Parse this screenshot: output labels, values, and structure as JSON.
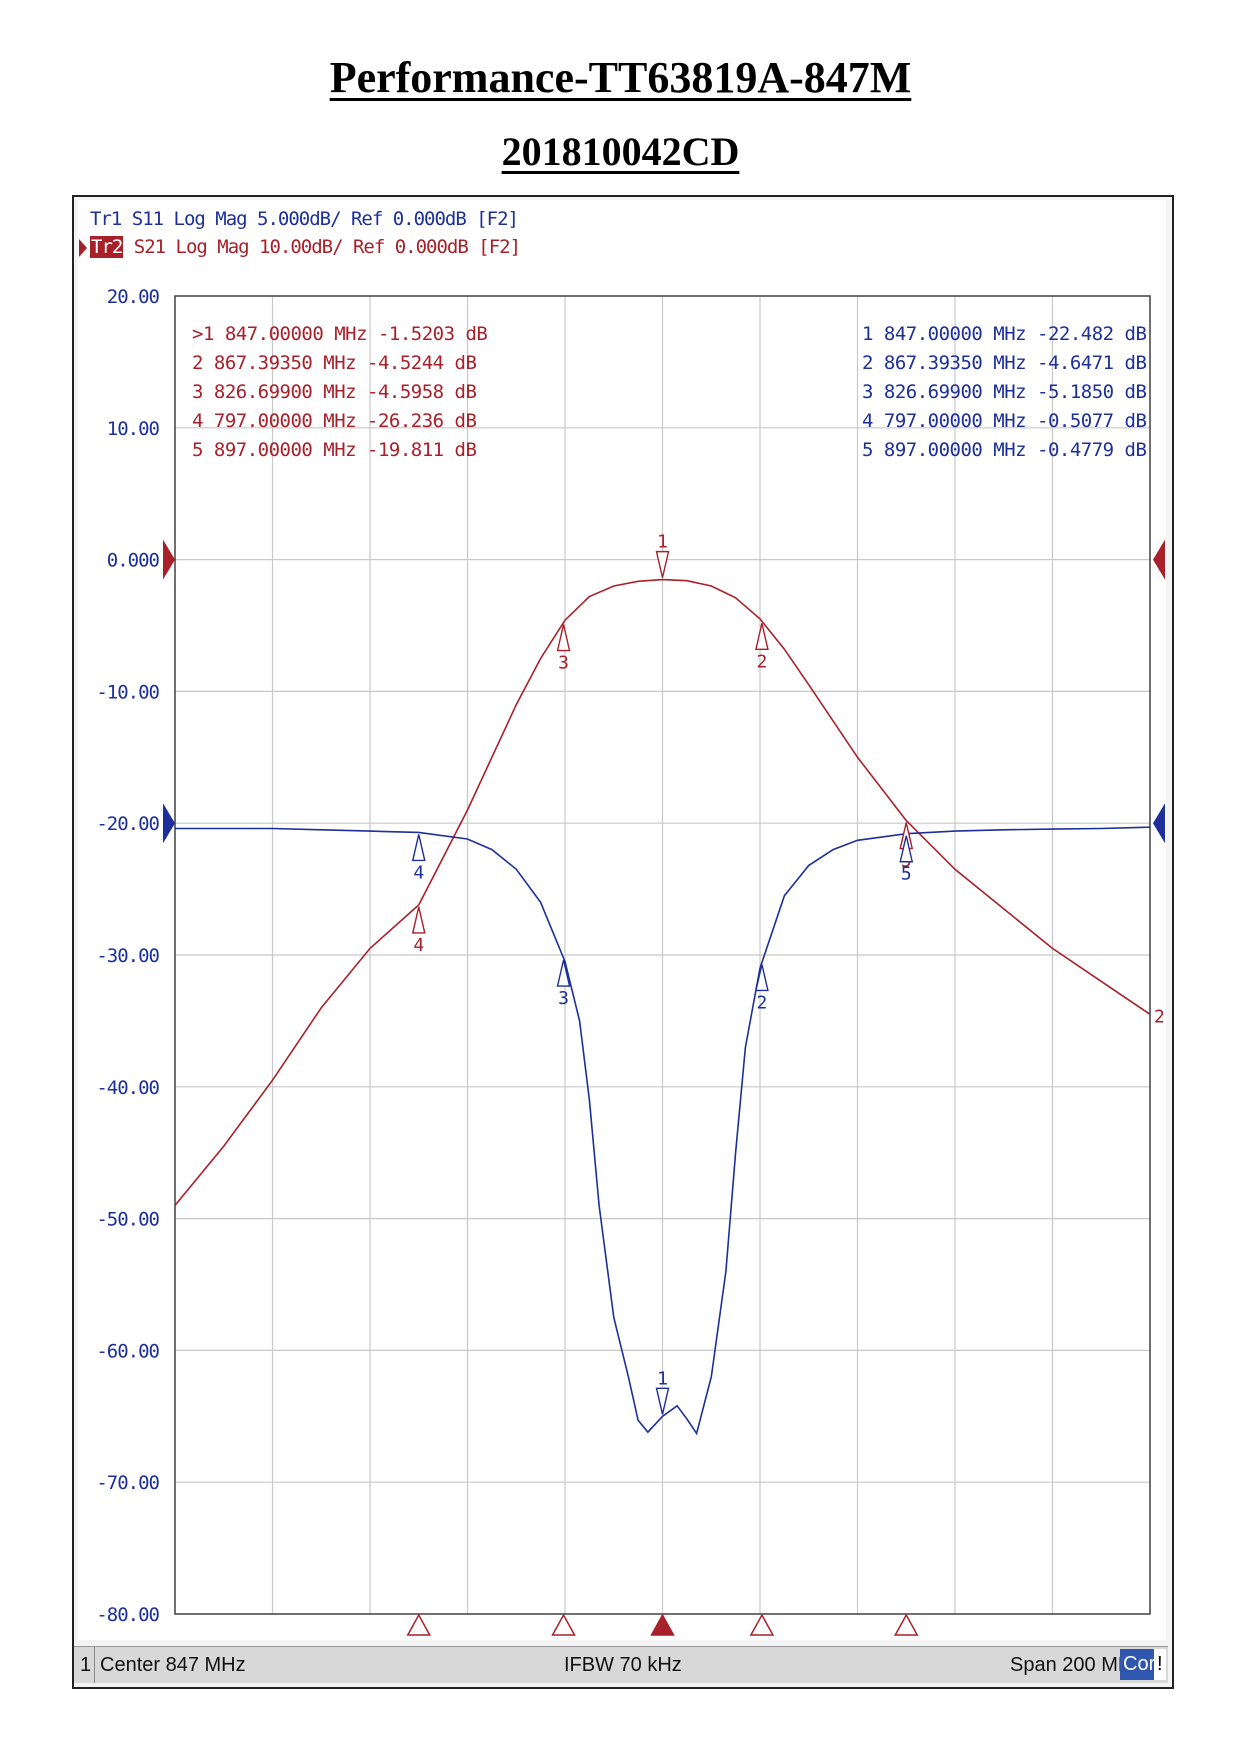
{
  "document": {
    "title": "Performance-TT63819A-847M",
    "subtitle": "201810042CD"
  },
  "analyzer": {
    "tr1_header": "Tr1 S11 Log Mag 5.000dB/ Ref 0.000dB [F2]",
    "tr2_tag": "Tr2",
    "tr2_header": " S21 Log Mag 10.00dB/ Ref 0.000dB [F2]",
    "status": {
      "channel": "1",
      "center": "Center 847 MHz",
      "ifbw": "IFBW 70 kHz",
      "span": "Span 200 MHz",
      "cor": "Cor",
      "flag": "!"
    },
    "colors": {
      "s21": "#a8202a",
      "s11": "#1c2f9a",
      "grid": "#c8c8c8"
    }
  },
  "chart_data": {
    "type": "line",
    "ylim": [
      -80,
      20
    ],
    "xlim": [
      747,
      947
    ],
    "x_unit": "MHz",
    "yticks": [
      "20.00",
      "10.00",
      "0.000",
      "-10.00",
      "-20.00",
      "-30.00",
      "-40.00",
      "-50.00",
      "-60.00",
      "-70.00",
      "-80.00"
    ],
    "grid": true,
    "ref_levels": {
      "s21": 0.0,
      "s11": -20.0
    },
    "series": [
      {
        "trace": "S21",
        "x": [
          747,
          757,
          767,
          777,
          787,
          797,
          807,
          817,
          822,
          827,
          832,
          837,
          842,
          847,
          852,
          857,
          862,
          867,
          872,
          877,
          887,
          897,
          907,
          917,
          927,
          937,
          947
        ],
        "y": [
          -49.0,
          -44.5,
          -39.5,
          -34.0,
          -29.5,
          -26.2,
          -19.0,
          -11.0,
          -7.5,
          -4.6,
          -2.8,
          -2.0,
          -1.65,
          -1.52,
          -1.6,
          -2.0,
          -2.9,
          -4.5,
          -6.8,
          -9.5,
          -15.0,
          -19.8,
          -23.5,
          -26.5,
          -29.5,
          -32.0,
          -34.5
        ]
      },
      {
        "trace": "S11",
        "x": [
          747,
          757,
          767,
          777,
          787,
          797,
          807,
          812,
          817,
          822,
          827,
          830,
          832,
          834,
          837,
          840,
          842,
          844,
          847,
          850,
          852,
          854,
          857,
          860,
          862,
          864,
          867,
          872,
          877,
          882,
          887,
          897,
          907,
          917,
          927,
          937,
          947
        ],
        "y": [
          -20.4,
          -20.4,
          -20.4,
          -20.5,
          -20.6,
          -20.7,
          -21.2,
          -22.0,
          -23.5,
          -26.0,
          -30.5,
          -35.0,
          -41.0,
          -49.0,
          -57.5,
          -62.0,
          -65.3,
          -66.2,
          -65.0,
          -64.2,
          -65.2,
          -66.3,
          -62.0,
          -54.0,
          -45.0,
          -37.0,
          -31.0,
          -25.5,
          -23.2,
          -22.0,
          -21.3,
          -20.8,
          -20.6,
          -20.5,
          -20.45,
          -20.4,
          -20.3
        ]
      }
    ],
    "markers": {
      "s21": [
        {
          "id": "1",
          "freq": "847.00000 MHz",
          "value": "-1.5203 dB",
          "x": 847.0,
          "y": -1.5203,
          "active": true
        },
        {
          "id": "2",
          "freq": "867.39350 MHz",
          "value": "-4.5244 dB",
          "x": 867.3935,
          "y": -4.5244
        },
        {
          "id": "3",
          "freq": "826.69900 MHz",
          "value": "-4.5958 dB",
          "x": 826.699,
          "y": -4.5958
        },
        {
          "id": "4",
          "freq": "797.00000 MHz",
          "value": "-26.236 dB",
          "x": 797.0,
          "y": -26.236
        },
        {
          "id": "5",
          "freq": "897.00000 MHz",
          "value": "-19.811 dB",
          "x": 897.0,
          "y": -19.811
        }
      ],
      "s11": [
        {
          "id": "1",
          "freq": "847.00000 MHz",
          "value": "-22.482 dB",
          "x": 847.0,
          "y": -22.482
        },
        {
          "id": "2",
          "freq": "867.39350 MHz",
          "value": "-4.6471 dB",
          "x": 867.3935,
          "y": -4.6471
        },
        {
          "id": "3",
          "freq": "826.69900 MHz",
          "value": "-5.1850 dB",
          "x": 826.699,
          "y": -5.185
        },
        {
          "id": "4",
          "freq": "797.00000 MHz",
          "value": "-0.5077 dB",
          "x": 797.0,
          "y": -0.5077
        },
        {
          "id": "5",
          "freq": "897.00000 MHz",
          "value": "-0.4779 dB",
          "x": 897.0,
          "y": -0.4779
        }
      ]
    },
    "trace_end_label": "2"
  }
}
